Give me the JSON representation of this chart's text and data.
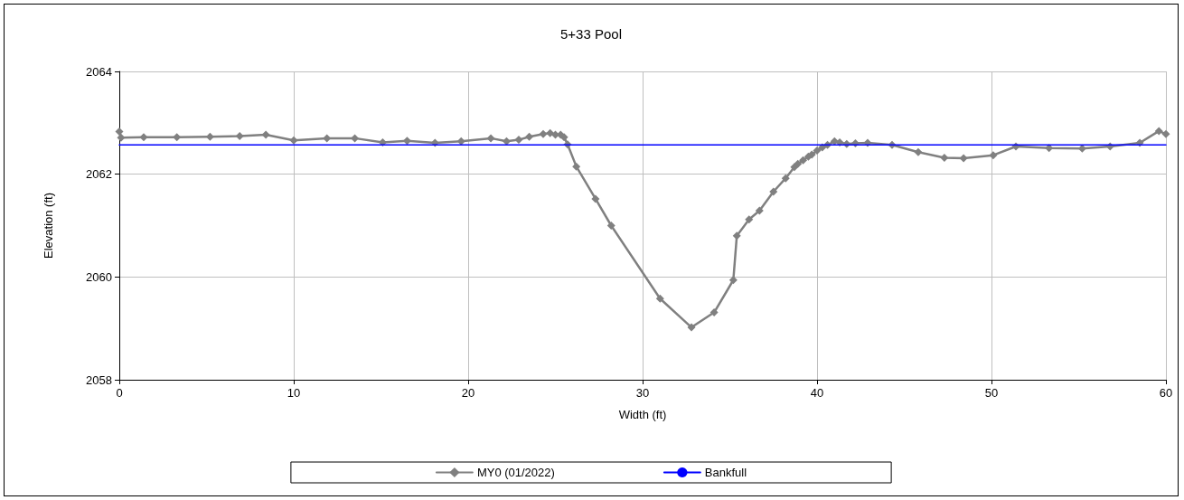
{
  "chart_data": {
    "type": "line",
    "title": "5+33 Pool",
    "xlabel": "Width (ft)",
    "ylabel": "Elevation (ft)",
    "xlim": [
      0,
      60
    ],
    "xticks": [
      0,
      10,
      20,
      30,
      40,
      50,
      60
    ],
    "ylim": [
      2058,
      2064
    ],
    "yticks": [
      2058,
      2060,
      2062,
      2064
    ],
    "grid": true,
    "legend": "bottom",
    "series": [
      {
        "name": "MY0 (01/2022)",
        "color": "#808080",
        "marker": "diamond",
        "x": [
          0,
          0.1,
          1.4,
          3.3,
          5.2,
          6.9,
          8.4,
          10,
          11.9,
          13.5,
          15.1,
          16.5,
          18.1,
          19.6,
          21.3,
          22.2,
          22.9,
          23.5,
          24.3,
          24.7,
          25.0,
          25.3,
          25.5,
          25.7,
          26.2,
          27.3,
          28.2,
          31.0,
          32.8,
          34.1,
          35.2,
          35.4,
          36.1,
          36.7,
          37.5,
          38.2,
          38.7,
          38.9,
          39.2,
          39.5,
          39.7,
          40.0,
          40.3,
          40.6,
          41.0,
          41.3,
          41.7,
          42.2,
          42.9,
          44.3,
          45.8,
          47.3,
          48.4,
          50.1,
          51.4,
          53.3,
          55.2,
          56.8,
          58.5,
          59.6,
          60
        ],
        "values": [
          2062.83,
          2062.71,
          2062.72,
          2062.72,
          2062.73,
          2062.74,
          2062.77,
          2062.66,
          2062.7,
          2062.7,
          2062.62,
          2062.65,
          2062.61,
          2062.64,
          2062.7,
          2062.64,
          2062.67,
          2062.73,
          2062.78,
          2062.8,
          2062.77,
          2062.77,
          2062.72,
          2062.58,
          2062.15,
          2061.52,
          2061.0,
          2059.58,
          2059.02,
          2059.31,
          2059.94,
          2060.8,
          2061.12,
          2061.29,
          2061.66,
          2061.92,
          2062.14,
          2062.2,
          2062.27,
          2062.34,
          2062.38,
          2062.46,
          2062.52,
          2062.57,
          2062.64,
          2062.62,
          2062.59,
          2062.6,
          2062.61,
          2062.57,
          2062.43,
          2062.32,
          2062.31,
          2062.37,
          2062.54,
          2062.51,
          2062.5,
          2062.54,
          2062.61,
          2062.84,
          2062.78
        ]
      },
      {
        "name": "Bankfull",
        "color": "#0000ff",
        "marker": "none",
        "x": [
          0,
          60
        ],
        "values": [
          2062.57,
          2062.57
        ]
      }
    ]
  }
}
